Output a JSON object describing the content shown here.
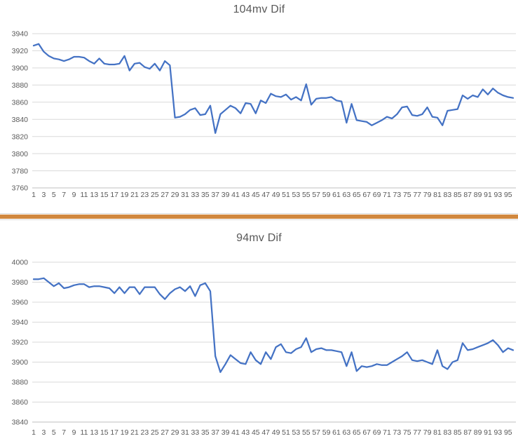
{
  "page": {
    "background": "#FFFFFF",
    "border_color": "#D9D9D9",
    "divider_color": "#D1883F"
  },
  "chart_data": [
    {
      "type": "line",
      "title": "104mv Dif",
      "legend": "none",
      "grid": true,
      "line_color": "#4472C4",
      "gridline_color": "#D9D9D9",
      "axis_line_color": "#BFBFBF",
      "axis_text_color": "#595959",
      "title_color": "#595959",
      "ylim": [
        3760,
        3940
      ],
      "yticks": [
        3760,
        3780,
        3800,
        3820,
        3840,
        3860,
        3880,
        3900,
        3920,
        3940
      ],
      "x_tick_labels": [
        "1",
        "3",
        "5",
        "7",
        "9",
        "11",
        "13",
        "15",
        "17",
        "19",
        "21",
        "23",
        "25",
        "27",
        "29",
        "31",
        "33",
        "35",
        "37",
        "39",
        "41",
        "43",
        "45",
        "47",
        "49",
        "51",
        "53",
        "55",
        "57",
        "59",
        "61",
        "63",
        "65",
        "67",
        "69",
        "71",
        "73",
        "75",
        "77",
        "79",
        "81",
        "83",
        "85",
        "87",
        "89",
        "91",
        "93",
        "95"
      ],
      "series": [
        {
          "name": "104mv Dif",
          "values": [
            3926,
            3928,
            3919,
            3914,
            3911,
            3910,
            3908,
            3910,
            3913,
            3913,
            3912,
            3908,
            3905,
            3911,
            3905,
            3904,
            3904,
            3905,
            3914,
            3897,
            3905,
            3906,
            3901,
            3899,
            3905,
            3897,
            3908,
            3903,
            3842,
            3843,
            3846,
            3851,
            3853,
            3845,
            3846,
            3856,
            3824,
            3846,
            3851,
            3856,
            3853,
            3847,
            3859,
            3858,
            3847,
            3862,
            3859,
            3870,
            3867,
            3866,
            3869,
            3863,
            3866,
            3862,
            3881,
            3857,
            3864,
            3865,
            3865,
            3866,
            3862,
            3861,
            3836,
            3858,
            3839,
            3838,
            3837,
            3833,
            3836,
            3839,
            3843,
            3841,
            3846,
            3854,
            3855,
            3845,
            3844,
            3846,
            3854,
            3843,
            3842,
            3833,
            3850,
            3851,
            3852,
            3868,
            3864,
            3868,
            3866,
            3875,
            3869,
            3876,
            3871,
            3868,
            3866,
            3865
          ]
        }
      ]
    },
    {
      "type": "line",
      "title": "94mv Dif",
      "legend": "none",
      "grid": true,
      "line_color": "#4472C4",
      "gridline_color": "#D9D9D9",
      "axis_line_color": "#BFBFBF",
      "axis_text_color": "#595959",
      "title_color": "#595959",
      "ylim": [
        3840,
        4000
      ],
      "yticks": [
        3840,
        3860,
        3880,
        3900,
        3920,
        3940,
        3960,
        3980,
        4000
      ],
      "x_tick_labels": [
        "1",
        "3",
        "5",
        "7",
        "9",
        "11",
        "13",
        "15",
        "17",
        "19",
        "21",
        "23",
        "25",
        "27",
        "29",
        "31",
        "33",
        "35",
        "37",
        "39",
        "41",
        "43",
        "45",
        "47",
        "49",
        "51",
        "53",
        "55",
        "57",
        "59",
        "61",
        "63",
        "65",
        "67",
        "69",
        "71",
        "73",
        "75",
        "77",
        "79",
        "81",
        "83",
        "85",
        "87",
        "89",
        "91",
        "93",
        "95"
      ],
      "series": [
        {
          "name": "94mv Dif",
          "values": [
            3983,
            3983,
            3984,
            3980,
            3976,
            3979,
            3974,
            3975,
            3977,
            3978,
            3978,
            3975,
            3976,
            3976,
            3975,
            3974,
            3969,
            3975,
            3969,
            3975,
            3975,
            3968,
            3975,
            3975,
            3975,
            3968,
            3963,
            3969,
            3973,
            3975,
            3971,
            3976,
            3966,
            3977,
            3979,
            3971,
            3906,
            3890,
            3898,
            3907,
            3903,
            3899,
            3898,
            3910,
            3902,
            3898,
            3910,
            3903,
            3915,
            3918,
            3910,
            3909,
            3913,
            3915,
            3924,
            3910,
            3913,
            3914,
            3912,
            3912,
            3911,
            3910,
            3896,
            3910,
            3891,
            3896,
            3895,
            3896,
            3898,
            3897,
            3897,
            3900,
            3903,
            3906,
            3910,
            3902,
            3901,
            3902,
            3900,
            3898,
            3912,
            3896,
            3893,
            3900,
            3902,
            3919,
            3912,
            3913,
            3915,
            3917,
            3919,
            3922,
            3917,
            3910,
            3914,
            3912
          ]
        }
      ]
    }
  ]
}
